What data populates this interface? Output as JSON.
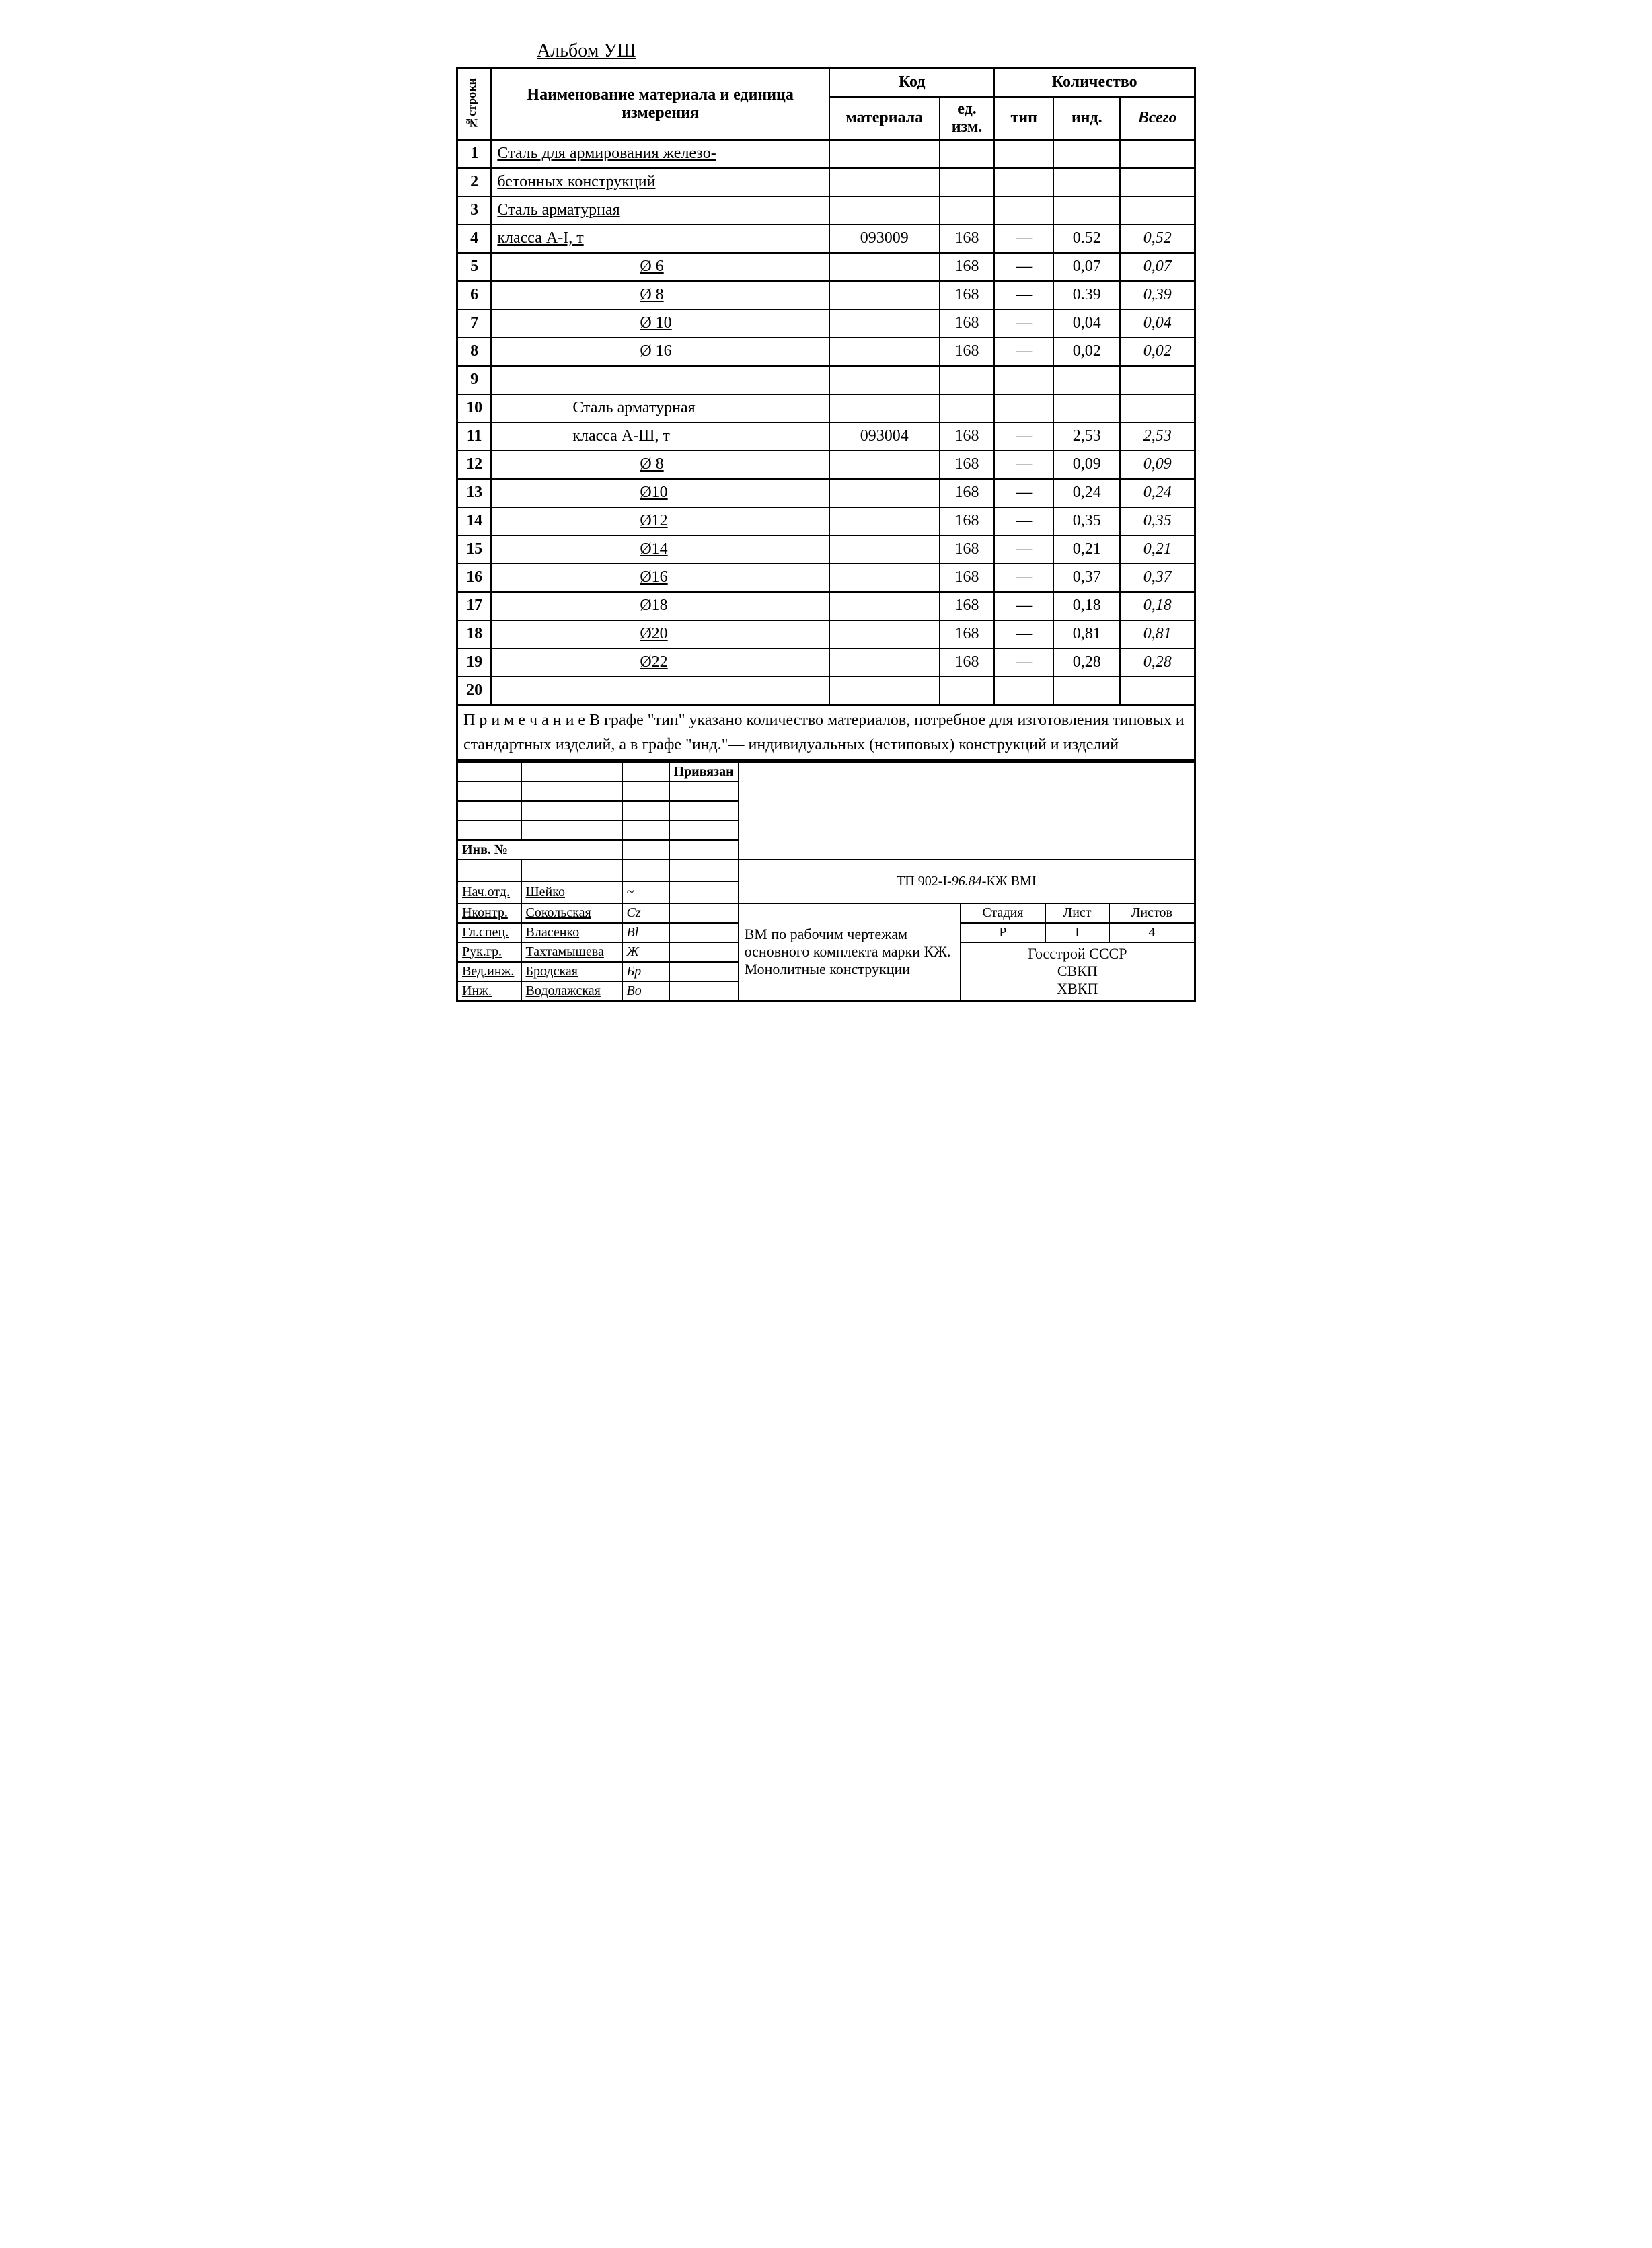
{
  "album_title": "Альбом УШ",
  "headers": {
    "rowno": "№строки",
    "name": "Наименование материала и единица измерения",
    "code": "Код",
    "code_mat": "материала",
    "code_ed": "ед. изм.",
    "qty": "Количество",
    "qty_tip": "тип",
    "qty_ind": "инд.",
    "qty_tot": "Всего"
  },
  "rows": [
    {
      "n": "1",
      "name": "Сталь для армирования железо-",
      "cls": "u"
    },
    {
      "n": "2",
      "name": "бетонных конструкций",
      "cls": "u"
    },
    {
      "n": "3",
      "name": "Сталь арматурная",
      "cls": "u"
    },
    {
      "n": "4",
      "name": "класса А-I, т",
      "cls": "u",
      "mat": "093009",
      "ed": "168",
      "tip": "—",
      "ind": "0.52",
      "tot": "0,52"
    },
    {
      "n": "5",
      "name": "Ø 6",
      "cls": "u indent2",
      "ed": "168",
      "tip": "—",
      "ind": "0,07",
      "tot": "0,07"
    },
    {
      "n": "6",
      "name": "Ø 8",
      "cls": "u indent2",
      "ed": "168",
      "tip": "—",
      "ind": "0.39",
      "tot": "0,39"
    },
    {
      "n": "7",
      "name": "Ø 10",
      "cls": "u indent2",
      "ed": "168",
      "tip": "—",
      "ind": "0,04",
      "tot": "0,04"
    },
    {
      "n": "8",
      "name": "Ø 16",
      "cls": "indent2",
      "ed": "168",
      "tip": "—",
      "ind": "0,02",
      "tot": "0,02"
    },
    {
      "n": "9",
      "name": ""
    },
    {
      "n": "10",
      "name": "Сталь арматурная",
      "cls": "indent1"
    },
    {
      "n": "11",
      "name": "класса А-Ш, т",
      "cls": "indent1",
      "mat": "093004",
      "ed": "168",
      "tip": "—",
      "ind": "2,53",
      "tot": "2,53"
    },
    {
      "n": "12",
      "name": "Ø 8",
      "cls": "u indent2",
      "ed": "168",
      "tip": "—",
      "ind": "0,09",
      "tot": "0,09"
    },
    {
      "n": "13",
      "name": "Ø10",
      "cls": "u indent2",
      "ed": "168",
      "tip": "—",
      "ind": "0,24",
      "tot": "0,24"
    },
    {
      "n": "14",
      "name": "Ø12",
      "cls": "u indent2",
      "ed": "168",
      "tip": "—",
      "ind": "0,35",
      "tot": "0,35"
    },
    {
      "n": "15",
      "name": "Ø14",
      "cls": "u indent2",
      "ed": "168",
      "tip": "—",
      "ind": "0,21",
      "tot": "0,21"
    },
    {
      "n": "16",
      "name": "Ø16",
      "cls": "u indent2",
      "ed": "168",
      "tip": "—",
      "ind": "0,37",
      "tot": "0,37"
    },
    {
      "n": "17",
      "name": "Ø18",
      "cls": "indent2",
      "ed": "168",
      "tip": "—",
      "ind": "0,18",
      "tot": "0,18"
    },
    {
      "n": "18",
      "name": "Ø20",
      "cls": "u indent2",
      "ed": "168",
      "tip": "—",
      "ind": "0,81",
      "tot": "0,81"
    },
    {
      "n": "19",
      "name": "Ø22",
      "cls": "u indent2",
      "ed": "168",
      "tip": "—",
      "ind": "0,28",
      "tot": "0,28"
    },
    {
      "n": "20",
      "name": ""
    }
  ],
  "note": "П р и м е ч а н и е  В графе \"тип\" указано количество материалов, потребное для изготовления типовых и стандартных изделий, а в графе \"инд.\"— индивидуальных (нетиповых) конструкций и изделий",
  "titleblock": {
    "privazan": "Привязан",
    "inv_no": "Инв. №",
    "doc_code_prefix": "ТП 902-I-",
    "doc_code_mid": "96.84",
    "doc_code_suffix": "-КЖ ВМI",
    "roles": [
      {
        "role": "Нач.отд.",
        "name": "Шейко"
      },
      {
        "role": "Нконтр.",
        "name": "Сокольская"
      },
      {
        "role": "Гл.спец.",
        "name": "Власенко"
      },
      {
        "role": "Рук.гр.",
        "name": "Тахтамышева"
      },
      {
        "role": "Вед.инж.",
        "name": "Бродская"
      },
      {
        "role": "Инж.",
        "name": "Водолажская"
      }
    ],
    "descr": "ВМ по рабочим чертежам основного комплекта марки КЖ. Монолитные конструкции",
    "stage_h": "Стадия",
    "stage_v": "Р",
    "sheet_h": "Лист",
    "sheet_v": "I",
    "sheets_h": "Листов",
    "sheets_v": "4",
    "org": "Госстрой СССР\nСВКП\nХВКП"
  }
}
